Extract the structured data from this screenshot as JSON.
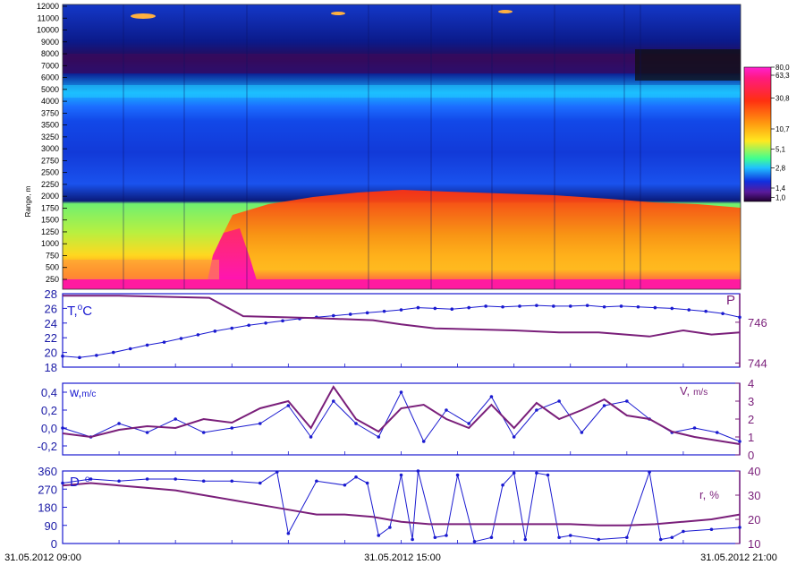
{
  "chart_data": [
    {
      "type": "heatmap",
      "ylabel": "Range, m",
      "ylim": [
        0,
        12000
      ],
      "yticks": [
        "250",
        "500",
        "750",
        "1000",
        "1250",
        "1500",
        "1750",
        "2000",
        "2250",
        "2500",
        "2750",
        "3000",
        "3250",
        "3500",
        "3750",
        "4000",
        "5000",
        "6000",
        "7000",
        "8000",
        "9000",
        "10000",
        "11000",
        "12000"
      ],
      "colorbar": {
        "ticks": [
          "80,0",
          "63,3",
          "30,8",
          "10,7",
          "5,1",
          "2,8",
          "1,4",
          "1,0"
        ]
      },
      "layers": [
        {
          "from": 0,
          "to": 250,
          "value": 63.3
        },
        {
          "from": 250,
          "to": 2250,
          "value": 30.8
        },
        {
          "from": 2250,
          "to": 4000,
          "value": 2.8
        },
        {
          "from": 4000,
          "to": 6000,
          "value": 5.1
        },
        {
          "from": 6000,
          "to": 8000,
          "value": 1.4
        },
        {
          "from": 8000,
          "to": 12000,
          "value": 2.8
        }
      ],
      "colors": {
        "magenta": "#ff1aa0",
        "red": "#ff2a10",
        "orange": "#ff9a10",
        "yellow": "#ffe020",
        "green": "#8fff60",
        "cyan": "#30e8ff",
        "blue": "#1040ff",
        "navy": "#0a1a9a",
        "purple": "#3a0a60"
      }
    },
    {
      "type": "line",
      "left_label": {
        "main": "T,",
        "sup": "o",
        "tail": "C"
      },
      "right_label": "P",
      "left_ticks": [
        "28",
        "26",
        "24",
        "22",
        "20",
        "18"
      ],
      "right_ticks": [
        "746",
        "744"
      ],
      "ylim_left": [
        18,
        28
      ],
      "ylim_right": [
        743.8,
        747.4
      ],
      "series": [
        {
          "color": "#1a1ad0",
          "marker": "dot",
          "x": [
            0,
            0.3,
            0.6,
            0.9,
            1.2,
            1.5,
            1.8,
            2.1,
            2.4,
            2.7,
            3.0,
            3.3,
            3.6,
            3.9,
            4.2,
            4.5,
            4.8,
            5.1,
            5.4,
            5.7,
            6.0,
            6.3,
            6.6,
            6.9,
            7.2,
            7.5,
            7.8,
            8.1,
            8.4,
            8.7,
            9.0,
            9.3,
            9.6,
            9.9,
            10.2,
            10.5,
            10.8,
            11.1,
            11.4,
            11.7,
            12.0
          ],
          "values": [
            19.5,
            19.3,
            19.6,
            20.0,
            20.5,
            21.0,
            21.4,
            21.9,
            22.4,
            22.9,
            23.3,
            23.7,
            24.0,
            24.3,
            24.6,
            24.8,
            25.0,
            25.2,
            25.4,
            25.6,
            25.8,
            26.1,
            26.0,
            25.9,
            26.1,
            26.3,
            26.2,
            26.3,
            26.4,
            26.3,
            26.3,
            26.4,
            26.2,
            26.3,
            26.2,
            26.1,
            26.0,
            25.8,
            25.6,
            25.3,
            24.8
          ]
        },
        {
          "color": "#7a1f7a",
          "marker": "none",
          "x": [
            0,
            1.0,
            2.6,
            3.2,
            4.5,
            5.5,
            6.0,
            6.6,
            8.0,
            8.8,
            9.5,
            10.4,
            11.0,
            11.5,
            12.0
          ],
          "values": [
            747.3,
            747.3,
            747.2,
            746.3,
            746.2,
            746.1,
            745.9,
            745.7,
            745.6,
            745.5,
            745.5,
            745.3,
            745.6,
            745.4,
            745.5
          ]
        }
      ]
    },
    {
      "type": "line",
      "left_label": "w,",
      "left_unit": "m/c",
      "right_label": "V,",
      "right_unit": "m/s",
      "left_ticks": [
        "0,4",
        "0,2",
        "0,0",
        "-0,2"
      ],
      "right_ticks": [
        "4",
        "3",
        "2",
        "1",
        "0"
      ],
      "ylim_left": [
        -0.3,
        0.5
      ],
      "ylim_right": [
        0,
        4
      ],
      "series": [
        {
          "color": "#1a1ad0",
          "marker": "dot",
          "x": [
            0,
            0.5,
            1.0,
            1.5,
            2.0,
            2.5,
            3.0,
            3.5,
            4.0,
            4.4,
            4.8,
            5.2,
            5.6,
            6.0,
            6.4,
            6.8,
            7.2,
            7.6,
            8.0,
            8.4,
            8.8,
            9.2,
            9.6,
            10.0,
            10.4,
            10.8,
            11.2,
            11.6,
            12.0
          ],
          "values": [
            0.0,
            -0.1,
            0.05,
            -0.05,
            0.1,
            -0.05,
            0.0,
            0.05,
            0.25,
            -0.1,
            0.3,
            0.05,
            -0.1,
            0.4,
            -0.15,
            0.2,
            0.05,
            0.35,
            -0.1,
            0.2,
            0.3,
            -0.05,
            0.25,
            0.3,
            0.1,
            -0.05,
            0.0,
            -0.05,
            -0.15
          ]
        },
        {
          "color": "#7a1f7a",
          "marker": "none",
          "x": [
            0,
            0.5,
            1.0,
            1.5,
            2.0,
            2.5,
            3.0,
            3.5,
            4.0,
            4.4,
            4.8,
            5.2,
            5.6,
            6.0,
            6.4,
            6.8,
            7.2,
            7.6,
            8.0,
            8.4,
            8.8,
            9.2,
            9.6,
            10.0,
            10.4,
            10.8,
            11.2,
            11.6,
            12.0
          ],
          "values": [
            1.2,
            1.0,
            1.4,
            1.6,
            1.5,
            2.0,
            1.8,
            2.6,
            3.0,
            1.5,
            3.8,
            2.0,
            1.3,
            2.6,
            2.8,
            2.0,
            1.5,
            2.8,
            1.5,
            2.9,
            2.0,
            2.5,
            3.1,
            2.2,
            2.0,
            1.3,
            1.0,
            0.8,
            0.6
          ]
        }
      ]
    },
    {
      "type": "line",
      "left_label": {
        "main": "D",
        "sup": "o"
      },
      "right_label": "r,",
      "right_unit": "%",
      "left_ticks": [
        "360",
        "270",
        "180",
        "90",
        "0"
      ],
      "right_ticks": [
        "40",
        "30",
        "20",
        "10"
      ],
      "ylim_left": [
        0,
        360
      ],
      "ylim_right": [
        10,
        40
      ],
      "x_ticks": [
        "31.05.2012 09:00",
        "31.05.2012 15:00",
        "31.05.2012 21:00"
      ],
      "series": [
        {
          "color": "#1a1ad0",
          "marker": "dot",
          "x": [
            0,
            0.5,
            1.0,
            1.5,
            2.0,
            2.5,
            3.0,
            3.5,
            3.8,
            4.0,
            4.5,
            5.0,
            5.2,
            5.4,
            5.6,
            5.8,
            6.0,
            6.2,
            6.3,
            6.6,
            6.8,
            7.0,
            7.3,
            7.6,
            7.8,
            8.0,
            8.2,
            8.4,
            8.6,
            8.8,
            9.0,
            9.5,
            10.0,
            10.4,
            10.6,
            10.8,
            11.0,
            11.5,
            12.0
          ],
          "values": [
            300,
            320,
            310,
            320,
            320,
            310,
            310,
            300,
            355,
            50,
            310,
            290,
            330,
            300,
            40,
            80,
            340,
            20,
            360,
            30,
            40,
            340,
            10,
            30,
            290,
            350,
            20,
            350,
            340,
            30,
            40,
            20,
            30,
            355,
            20,
            30,
            60,
            70,
            80
          ]
        },
        {
          "color": "#7a1f7a",
          "marker": "none",
          "x": [
            0,
            0.5,
            1.0,
            1.5,
            2.0,
            2.5,
            3.0,
            3.5,
            4.0,
            4.5,
            5.0,
            5.5,
            6.0,
            6.5,
            7.0,
            7.5,
            8.0,
            8.5,
            9.0,
            9.5,
            10.0,
            10.5,
            11.0,
            11.5,
            12.0
          ],
          "values": [
            34,
            35,
            34,
            33,
            32,
            30,
            28,
            26,
            24,
            22,
            22,
            21,
            19,
            18,
            18,
            18,
            18,
            18,
            18,
            17.5,
            17.5,
            18,
            19,
            20,
            22
          ]
        }
      ]
    }
  ]
}
